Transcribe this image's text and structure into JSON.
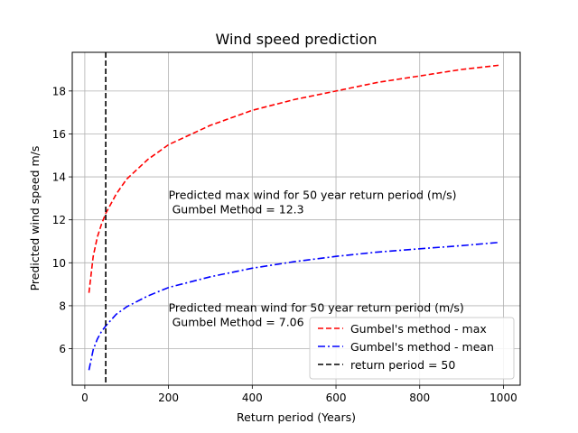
{
  "chart_data": {
    "type": "line",
    "title": "Wind speed prediction",
    "xlabel": "Return period (Years)",
    "ylabel": "Predicted wind speed m/s",
    "xlim": [
      -30,
      1040
    ],
    "ylim": [
      4.3,
      19.8
    ],
    "xticks": [
      0,
      200,
      400,
      600,
      800,
      1000
    ],
    "yticks": [
      6,
      8,
      10,
      12,
      14,
      16,
      18
    ],
    "grid": true,
    "legend_position": "lower-right",
    "series": [
      {
        "name": "Gumbel's method - max",
        "color": "#ff0000",
        "style": "dashed",
        "x": [
          10,
          20,
          30,
          40,
          50,
          75,
          100,
          150,
          200,
          300,
          400,
          500,
          600,
          700,
          800,
          900,
          990
        ],
        "y": [
          8.6,
          10.3,
          11.2,
          11.8,
          12.3,
          13.2,
          13.9,
          14.8,
          15.5,
          16.4,
          17.1,
          17.6,
          18.0,
          18.4,
          18.7,
          19.0,
          19.2
        ]
      },
      {
        "name": "Gumbel's method - mean",
        "color": "#0000ff",
        "style": "dashdot",
        "x": [
          10,
          20,
          30,
          40,
          50,
          75,
          100,
          150,
          200,
          300,
          400,
          500,
          600,
          700,
          800,
          900,
          990
        ],
        "y": [
          5.0,
          5.95,
          6.45,
          6.8,
          7.06,
          7.6,
          7.95,
          8.45,
          8.85,
          9.35,
          9.75,
          10.05,
          10.3,
          10.5,
          10.65,
          10.8,
          10.95
        ]
      }
    ],
    "vline": {
      "name": "return period = 50",
      "x": 50,
      "color": "#000000",
      "style": "dashed"
    },
    "annotations": [
      {
        "x": 200,
        "y": 12.3,
        "lines": [
          "Predicted max wind for 50 year return period (m/s)",
          " Gumbel Method = 12.3"
        ]
      },
      {
        "x": 200,
        "y": 7.06,
        "lines": [
          "Predicted mean wind for 50 year return period (m/s)",
          " Gumbel Method = 7.06"
        ]
      }
    ]
  }
}
